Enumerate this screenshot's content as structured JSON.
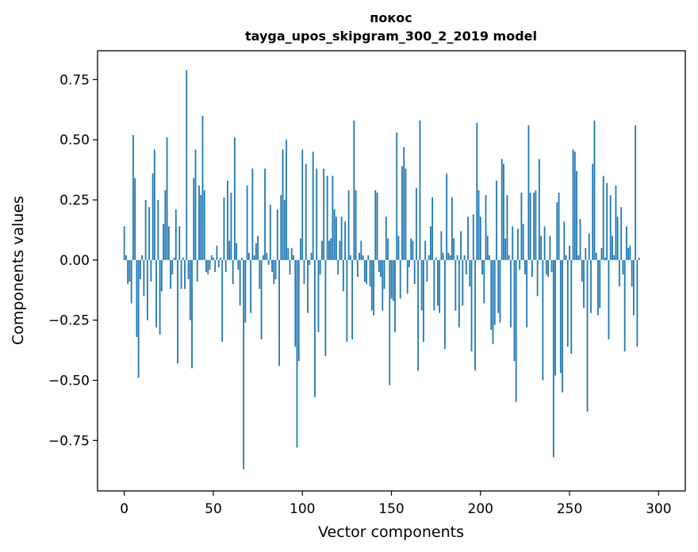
{
  "chart_data": {
    "type": "bar",
    "title_line1": "покос",
    "title_line2": "tayga_upos_skipgram_300_2_2019 model",
    "xlabel": "Vector components",
    "ylabel": "Components values",
    "xlim": [
      -15,
      315
    ],
    "ylim": [
      -0.96,
      0.87
    ],
    "xticks": [
      0,
      50,
      100,
      150,
      200,
      250,
      300
    ],
    "xtick_labels": [
      "0",
      "50",
      "100",
      "150",
      "200",
      "250",
      "300"
    ],
    "yticks": [
      0.75,
      0.5,
      0.25,
      0.0,
      -0.25,
      -0.5,
      -0.75
    ],
    "ytick_labels": [
      "0.75",
      "0.50",
      "0.25",
      "0.00",
      "−0.25",
      "−0.50",
      "−0.75"
    ],
    "bar_color": "#1f77b4",
    "values": [
      0.14,
      0.02,
      -0.1,
      -0.09,
      -0.18,
      0.52,
      0.34,
      -0.32,
      -0.49,
      -0.08,
      0.02,
      -0.15,
      0.25,
      -0.25,
      0.22,
      -0.09,
      0.36,
      0.46,
      -0.28,
      0.25,
      -0.31,
      -0.13,
      0.15,
      0.29,
      0.51,
      0.14,
      -0.12,
      -0.06,
      0.01,
      0.21,
      -0.43,
      0.14,
      -0.12,
      0.01,
      -0.12,
      0.79,
      -0.08,
      -0.25,
      -0.45,
      0.34,
      0.46,
      -0.09,
      0.31,
      0.27,
      0.6,
      0.29,
      -0.05,
      -0.06,
      -0.04,
      0.02,
      0.01,
      -0.05,
      0.06,
      -0.03,
      0.01,
      -0.34,
      0.26,
      -0.05,
      0.33,
      0.08,
      0.28,
      -0.1,
      0.51,
      0.07,
      -0.04,
      -0.19,
      0.01,
      -0.87,
      -0.26,
      0.31,
      0.03,
      -0.22,
      0.38,
      0.02,
      0.07,
      0.1,
      -0.12,
      -0.33,
      0.02,
      0.38,
      0.03,
      -0.02,
      0.23,
      -0.05,
      -0.1,
      -0.08,
      0.21,
      -0.44,
      0.27,
      0.46,
      0.25,
      0.5,
      0.05,
      -0.06,
      0.05,
      0.02,
      -0.36,
      -0.78,
      -0.42,
      0.09,
      0.46,
      -0.1,
      0.4,
      -0.22,
      -0.02,
      0.03,
      0.45,
      -0.57,
      0.38,
      -0.3,
      -0.06,
      0.08,
      0.38,
      -0.4,
      0.35,
      0.08,
      0.09,
      0.35,
      0.21,
      0.18,
      -0.06,
      0.08,
      0.18,
      -0.13,
      0.16,
      -0.34,
      0.29,
      0.02,
      -0.33,
      0.58,
      0.29,
      -0.07,
      0.03,
      0.08,
      0.02,
      -0.09,
      -0.1,
      0.02,
      -0.11,
      -0.21,
      -0.23,
      0.29,
      0.28,
      -0.05,
      -0.07,
      -0.21,
      -0.12,
      0.18,
      0.09,
      -0.52,
      -0.16,
      -0.17,
      -0.3,
      0.53,
      0.1,
      -0.16,
      0.39,
      0.47,
      0.38,
      -0.14,
      -0.03,
      0.09,
      0.08,
      -0.1,
      0.3,
      -0.46,
      0.58,
      -0.21,
      -0.34,
      0.08,
      -0.09,
      0.02,
      0.14,
      0.26,
      -0.21,
      0.01,
      -0.19,
      -0.22,
      0.12,
      0.03,
      -0.37,
      0.36,
      0.03,
      0.02,
      0.26,
      0.09,
      -0.21,
      0.02,
      -0.28,
      0.12,
      -0.19,
      0.02,
      -0.06,
      0.18,
      -0.11,
      -0.38,
      0.19,
      -0.46,
      0.57,
      0.29,
      0.18,
      -0.06,
      -0.18,
      0.27,
      0.1,
      0.02,
      -0.29,
      -0.35,
      -0.27,
      0.33,
      -0.22,
      -0.26,
      0.42,
      0.4,
      0.09,
      0.27,
      0.02,
      -0.28,
      0.14,
      -0.42,
      -0.59,
      0.13,
      -0.04,
      0.28,
      0.15,
      -0.06,
      -0.28,
      0.56,
      0.28,
      -0.07,
      0.28,
      0.29,
      -0.15,
      0.42,
      0.1,
      -0.5,
      0.14,
      -0.06,
      -0.07,
      0.1,
      -0.05,
      -0.82,
      -0.48,
      0.24,
      0.28,
      -0.47,
      -0.55,
      0.16,
      0.02,
      -0.36,
      0.06,
      -0.39,
      0.46,
      0.45,
      0.37,
      0.02,
      0.17,
      -0.09,
      -0.2,
      0.05,
      -0.63,
      0.11,
      -0.22,
      0.4,
      0.58,
      0.03,
      -0.23,
      -0.2,
      0.05,
      0.35,
      0.01,
      0.32,
      -0.33,
      0.27,
      0.1,
      0.02,
      0.31,
      0.18,
      -0.11,
      0.22,
      -0.06,
      -0.38,
      0.14,
      0.05,
      0.06,
      -0.11,
      -0.23,
      0.56,
      -0.36,
      0.01
    ]
  }
}
